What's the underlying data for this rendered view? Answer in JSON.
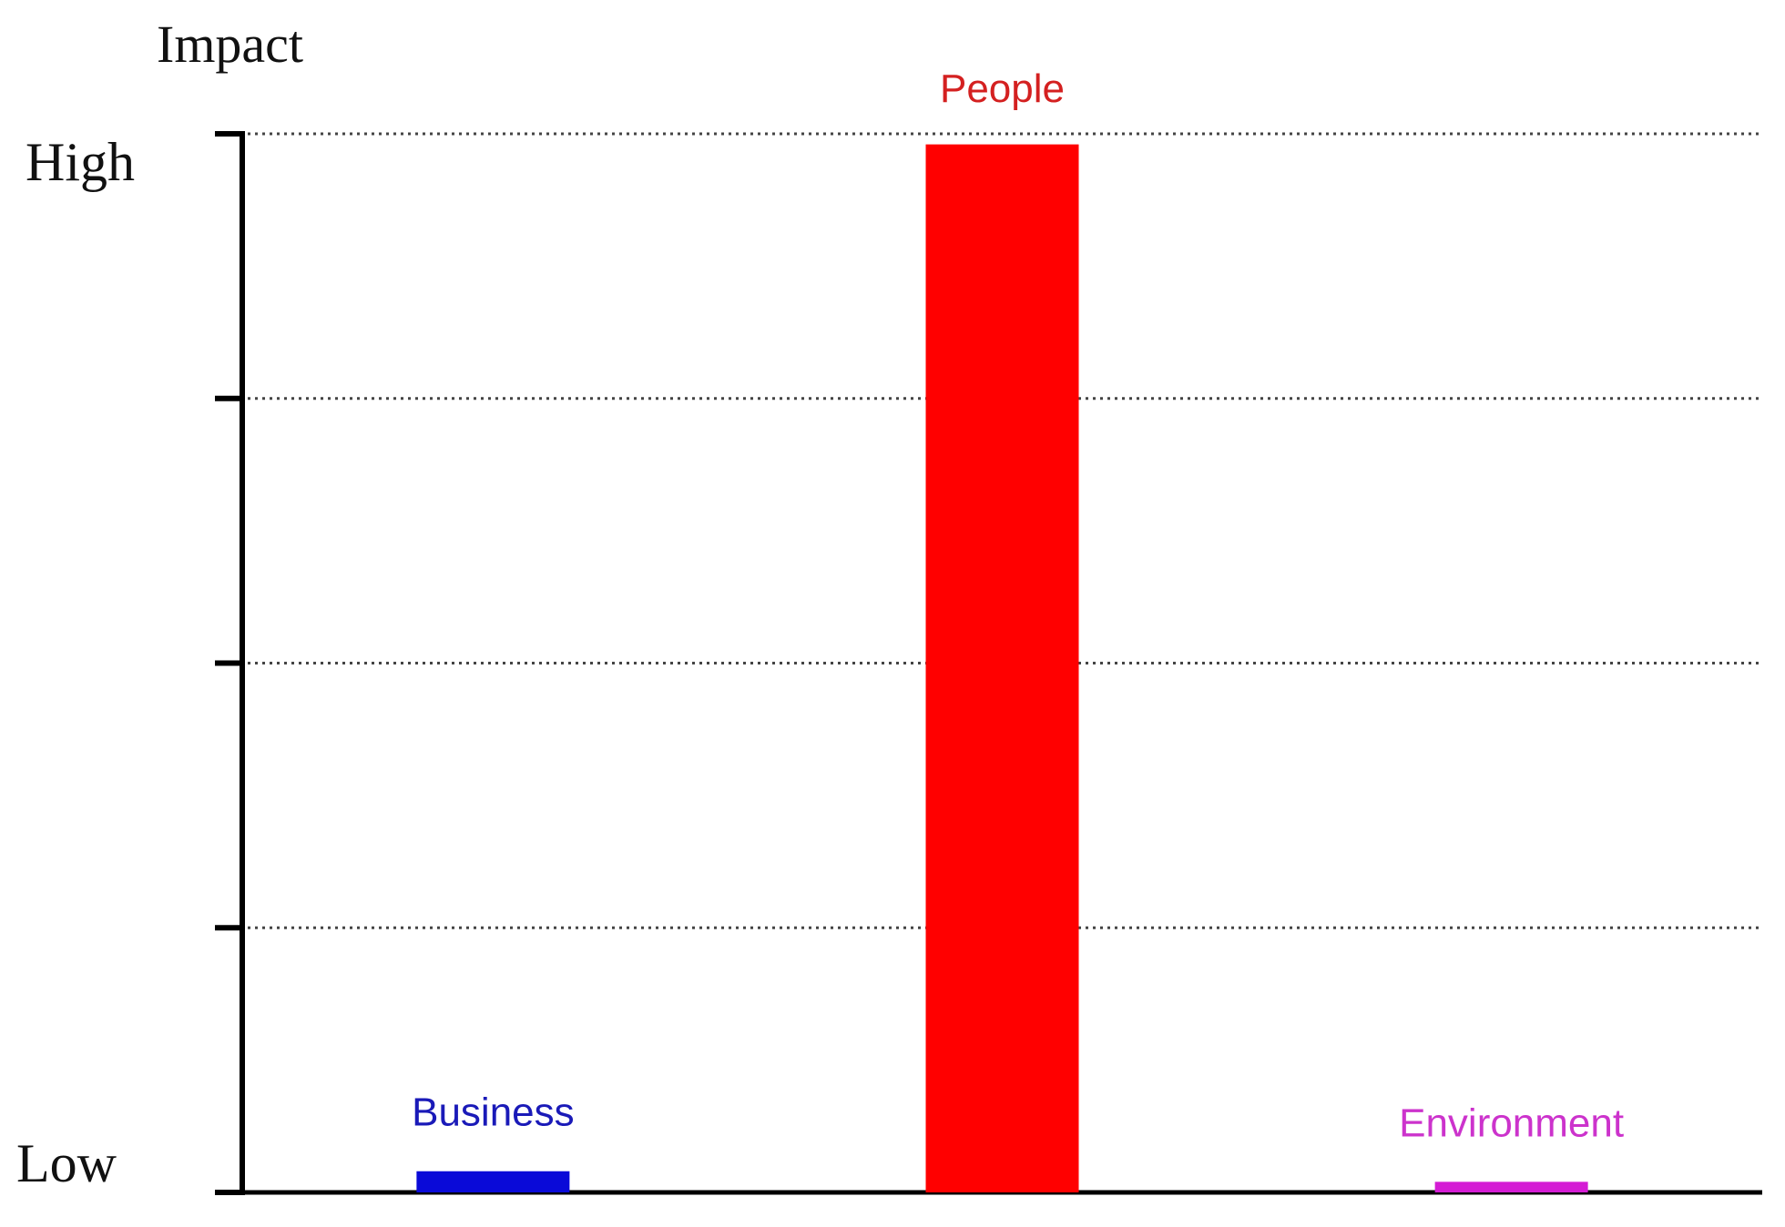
{
  "chart_data": {
    "type": "bar",
    "ylabel": "Impact",
    "y_level_labels": {
      "top": "High",
      "bottom": "Low"
    },
    "ylim": [
      0,
      100
    ],
    "y_ticks": [
      0,
      25,
      50,
      75,
      100
    ],
    "grid": true,
    "categories": [
      "Business",
      "People",
      "Environment"
    ],
    "values": [
      2,
      99,
      1
    ],
    "colors": [
      "#0a0ad8",
      "#ff0000",
      "#d41cd4"
    ],
    "label_colors": [
      "#1a1ab8",
      "#d42020",
      "#cc33cc"
    ]
  }
}
